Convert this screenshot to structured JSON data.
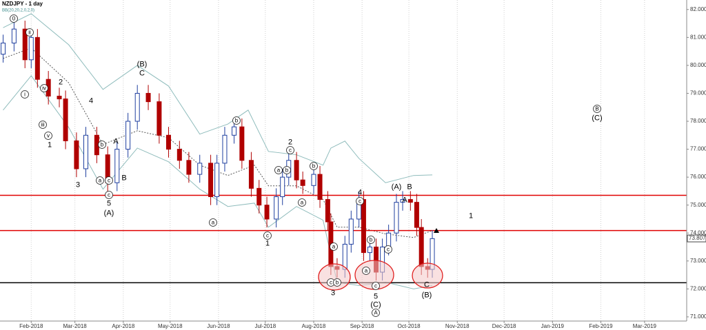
{
  "chart_data": {
    "type": "candlestick",
    "title": "NZDJPY - 1 day",
    "subtitle": "BB(20,20,2,0,2,0)",
    "x": [
      -18,
      -11,
      -4,
      0,
      4,
      11,
      18,
      22,
      29,
      35,
      42,
      49,
      55,
      62,
      68,
      75,
      82,
      88,
      95,
      101,
      108,
      115,
      119,
      124,
      130,
      135,
      141,
      146,
      151,
      157,
      161,
      165,
      170,
      174,
      181,
      185,
      190,
      192,
      196,
      201,
      205,
      210,
      213,
      217,
      221,
      225,
      229,
      234,
      238,
      243,
      247,
      250,
      254,
      257
    ],
    "open": [
      80.4,
      80.8,
      81.3,
      80.2,
      81.0,
      79.5,
      78.9,
      78.8,
      77.3,
      76.3,
      77.5,
      76.8,
      75.8,
      77.0,
      78.0,
      79.0,
      78.7,
      77.5,
      77.0,
      76.6,
      76.1,
      76.5,
      75.3,
      76.5,
      77.5,
      77.8,
      76.6,
      75.6,
      75.0,
      74.5,
      75.3,
      76.0,
      76.6,
      75.9,
      75.7,
      76.1,
      75.2,
      74.4,
      72.8,
      72.7,
      73.6,
      74.5,
      75.2,
      73.3,
      73.5,
      72.6,
      73.5,
      74.0,
      75.1,
      75.2,
      75.1,
      74.2,
      72.8,
      72.7
    ],
    "high": [
      81.1,
      81.6,
      81.6,
      81.3,
      81.3,
      79.8,
      79.2,
      79.1,
      77.6,
      77.8,
      77.8,
      77.1,
      77.3,
      78.3,
      79.3,
      79.3,
      79.0,
      77.8,
      77.3,
      76.9,
      76.8,
      76.8,
      76.8,
      77.8,
      78.1,
      78.1,
      76.9,
      75.9,
      75.3,
      75.6,
      76.3,
      76.9,
      76.9,
      76.2,
      76.4,
      76.4,
      75.5,
      74.7,
      73.1,
      73.9,
      74.8,
      75.5,
      75.5,
      73.8,
      73.8,
      73.8,
      74.3,
      75.4,
      75.5,
      75.5,
      75.4,
      74.5,
      73.1,
      74.1
    ],
    "low": [
      80.1,
      80.5,
      79.9,
      79.9,
      79.2,
      78.6,
      78.5,
      77.0,
      76.0,
      76.0,
      76.5,
      75.5,
      75.5,
      76.7,
      77.7,
      78.4,
      77.2,
      76.7,
      76.3,
      75.8,
      75.8,
      75.0,
      75.0,
      76.2,
      77.2,
      76.3,
      75.3,
      74.7,
      74.2,
      74.2,
      75.0,
      75.7,
      75.6,
      75.4,
      75.4,
      74.9,
      74.1,
      72.5,
      72.4,
      72.4,
      73.3,
      74.2,
      73.0,
      73.0,
      72.3,
      72.3,
      73.2,
      73.7,
      74.8,
      74.8,
      73.9,
      72.5,
      72.4,
      72.4
    ],
    "close": [
      80.8,
      81.3,
      80.2,
      81.0,
      79.5,
      78.9,
      78.8,
      77.3,
      76.3,
      77.5,
      76.8,
      75.8,
      77.0,
      78.0,
      79.0,
      78.7,
      77.5,
      77.0,
      76.6,
      76.1,
      76.5,
      75.3,
      76.5,
      77.5,
      77.8,
      76.6,
      75.6,
      75.0,
      74.5,
      75.3,
      76.0,
      76.6,
      75.9,
      75.7,
      76.1,
      75.2,
      74.4,
      72.8,
      72.7,
      73.6,
      74.5,
      75.2,
      73.3,
      73.5,
      72.6,
      73.5,
      74.0,
      75.1,
      75.2,
      75.1,
      74.2,
      72.8,
      72.7,
      73.8
    ],
    "up_color": "#1f3f9f",
    "down_color": "#b00000",
    "overlays": [
      {
        "x": [
          -18,
          0,
          24,
          46,
          68,
          88,
          108,
          126,
          139,
          152,
          170,
          187,
          192,
          201,
          210,
          227,
          245,
          257
        ],
        "values": [
          81.35,
          81.85,
          80.74,
          79.14,
          80.0,
          79.26,
          77.54,
          77.9,
          78.4,
          76.92,
          76.8,
          76.43,
          77.04,
          77.29,
          76.67,
          75.8,
          76.06,
          76.08
        ],
        "color": "#8fbcbc"
      },
      {
        "x": [
          -18,
          0,
          24,
          46,
          68,
          88,
          108,
          126,
          143,
          152,
          170,
          187,
          196,
          210,
          227,
          245,
          257
        ],
        "values": [
          80.25,
          80.62,
          79.38,
          77.17,
          77.66,
          77.41,
          76.43,
          76.06,
          76.43,
          75.69,
          75.69,
          75.2,
          74.21,
          74.21,
          73.97,
          73.84,
          74.09
        ],
        "color": "#555555"
      },
      {
        "x": [
          -18,
          0,
          24,
          46,
          68,
          88,
          108,
          126,
          143,
          152,
          170,
          187,
          196,
          210,
          227,
          245,
          257
        ],
        "values": [
          78.4,
          79.63,
          77.78,
          75.57,
          77.04,
          76.55,
          75.57,
          74.95,
          75.07,
          74.21,
          74.95,
          74.46,
          72.24,
          72.12,
          72.24,
          72.0,
          72.12
        ],
        "color": "#8fbcbc"
      }
    ],
    "levels": [
      {
        "value": 75.35,
        "color": "#e00000"
      },
      {
        "value": 74.09,
        "color": "#e00000"
      },
      {
        "value": 72.22,
        "color": "#000000"
      }
    ],
    "last": {
      "value": 73.807,
      "label": "73.807"
    },
    "xlim": [
      -20,
      420
    ],
    "ylim": [
      70.85,
      82.34
    ],
    "xticks": [
      {
        "value": 0,
        "label": "Feb-2018"
      },
      {
        "value": 28,
        "label": "Mar-2018"
      },
      {
        "value": 59,
        "label": "Apr-2018"
      },
      {
        "value": 89,
        "label": "May-2018"
      },
      {
        "value": 120,
        "label": "Jun-2018"
      },
      {
        "value": 150,
        "label": "Jul-2018"
      },
      {
        "value": 181,
        "label": "Aug-2018"
      },
      {
        "value": 212,
        "label": "Sep-2018"
      },
      {
        "value": 242,
        "label": "Oct-2018"
      },
      {
        "value": 273,
        "label": "Nov-2018"
      },
      {
        "value": 303,
        "label": "Dec-2018"
      },
      {
        "value": 334,
        "label": "Jan-2019"
      },
      {
        "value": 365,
        "label": "Feb-2019"
      },
      {
        "value": 393,
        "label": "Mar-2019"
      }
    ],
    "yticks": [
      {
        "value": 71,
        "label": "71.000"
      },
      {
        "value": 72,
        "label": "72.000"
      },
      {
        "value": 73,
        "label": "73.000"
      },
      {
        "value": 74,
        "label": "74.000"
      },
      {
        "value": 75,
        "label": "75.000"
      },
      {
        "value": 76,
        "label": "76.000"
      },
      {
        "value": 77,
        "label": "77.000"
      },
      {
        "value": 78,
        "label": "78.000"
      },
      {
        "value": 79,
        "label": "79.000"
      },
      {
        "value": 80,
        "label": "80.000"
      },
      {
        "value": 81,
        "label": "81.000"
      },
      {
        "value": 82,
        "label": "82.000"
      }
    ],
    "grid": true,
    "annotations": [
      "0",
      "ii",
      "i",
      "iv",
      "2",
      "iii",
      "v",
      "1",
      "4",
      "A",
      "b",
      "a",
      "c",
      "3",
      "B",
      "c",
      "5",
      "(A)",
      "(B)",
      "C",
      "b",
      "a",
      "c",
      "1",
      "2",
      "c",
      "a",
      "b",
      "b",
      "a",
      "4",
      "c",
      "a",
      "c",
      "b",
      "3",
      "b",
      "a",
      "c",
      "5",
      "(C)",
      "A",
      "c",
      "(A)",
      "B",
      "A",
      "C",
      "(B)",
      "1",
      "B",
      "(C)"
    ]
  }
}
